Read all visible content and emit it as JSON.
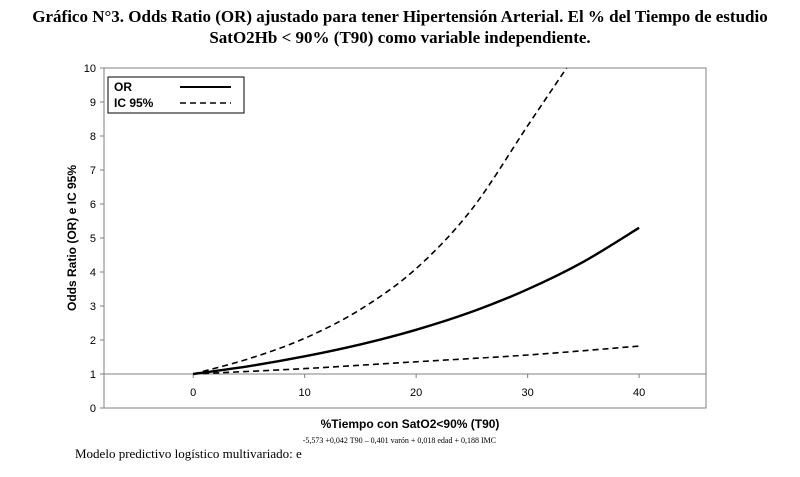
{
  "figure": {
    "title_line1": "Gráfico N°3. Odds Ratio (OR) ajustado para tener Hipertensión Arterial. El % del Tiempo de estudio",
    "title_line2": "SatO2Hb < 90% (T90) como variable independiente."
  },
  "chart_data": {
    "type": "line",
    "xlabel": "%Tiempo con SatO2<90% (T90)",
    "ylabel": "Odds Ratio (OR) e IC 95%",
    "xlim": [
      -8,
      46
    ],
    "ylim": [
      0,
      10
    ],
    "x_ticks": [
      "0",
      "10",
      "20",
      "30",
      "40"
    ],
    "y_ticks": [
      "0",
      "1",
      "2",
      "3",
      "4",
      "5",
      "6",
      "7",
      "8",
      "9",
      "10"
    ],
    "grid": false,
    "legend_position": "top-left",
    "reference_line_y": 1,
    "series": [
      {
        "name": "OR",
        "style": "solid",
        "x": [
          0,
          5,
          10,
          15,
          20,
          25,
          30,
          35,
          40
        ],
        "y": [
          1.0,
          1.23,
          1.52,
          1.87,
          2.3,
          2.83,
          3.49,
          4.3,
          5.3
        ]
      },
      {
        "name": "IC 95%",
        "style": "dashed",
        "x": [
          0,
          5,
          10,
          15,
          20,
          25,
          30,
          33.5
        ],
        "y": [
          1.0,
          1.45,
          2.05,
          2.9,
          4.1,
          5.85,
          8.3,
          10.0
        ]
      },
      {
        "name": "",
        "style": "dashed",
        "x": [
          0,
          10,
          20,
          30,
          40
        ],
        "y": [
          1.0,
          1.16,
          1.36,
          1.56,
          1.82
        ]
      }
    ]
  },
  "footnote": {
    "text": "Modelo predictivo logístico multivariado: e",
    "exponent": "-5,573 +0,042 T90 – 0,401 varón + 0,018 edad + 0,188 IMC"
  }
}
